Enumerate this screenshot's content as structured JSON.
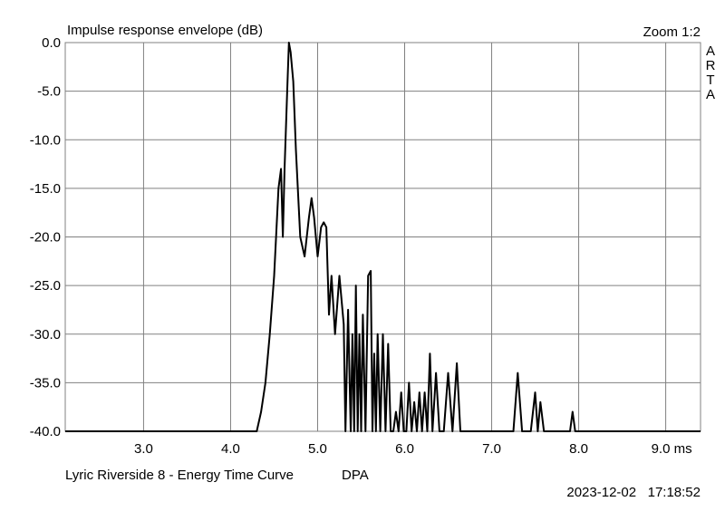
{
  "chart_data": {
    "type": "line",
    "title": "Impulse response envelope (dB)",
    "xlabel": "",
    "ylabel": "",
    "x_unit": "ms",
    "xlim": [
      2.1,
      9.4
    ],
    "ylim": [
      -40,
      0
    ],
    "x_ticks": [
      3.0,
      4.0,
      5.0,
      6.0,
      7.0,
      8.0,
      9.0
    ],
    "x_tick_labels": [
      "3.0",
      "4.0",
      "5.0",
      "6.0",
      "7.0",
      "8.0",
      "9.0 ms"
    ],
    "y_ticks": [
      0,
      -5,
      -10,
      -15,
      -20,
      -25,
      -30,
      -35,
      -40
    ],
    "y_tick_labels": [
      "0.0",
      "-5.0",
      "-10.0",
      "-15.0",
      "-20.0",
      "-25.0",
      "-30.0",
      "-35.0",
      "-40.0"
    ],
    "grid": true,
    "series": [
      {
        "x": [
          2.1,
          4.3,
          4.35,
          4.4,
          4.45,
          4.5,
          4.55,
          4.58,
          4.6,
          4.62,
          4.65,
          4.67,
          4.69,
          4.72,
          4.75,
          4.8,
          4.85,
          4.9,
          4.93,
          4.96,
          5.0,
          5.04,
          5.07,
          5.1,
          5.13,
          5.16,
          5.2,
          5.25,
          5.3,
          5.32,
          5.35,
          5.38,
          5.4,
          5.42,
          5.44,
          5.46,
          5.48,
          5.5,
          5.52,
          5.55,
          5.58,
          5.61,
          5.63,
          5.65,
          5.67,
          5.69,
          5.72,
          5.75,
          5.78,
          5.81,
          5.84,
          5.87,
          5.9,
          5.93,
          5.96,
          5.99,
          6.02,
          6.05,
          6.08,
          6.11,
          6.14,
          6.17,
          6.2,
          6.23,
          6.26,
          6.29,
          6.32,
          6.36,
          6.4,
          6.45,
          6.5,
          6.55,
          6.6,
          6.64,
          6.68,
          6.72,
          6.76,
          6.8,
          6.84,
          6.88,
          6.92,
          6.96,
          7.0,
          7.05,
          7.1,
          7.15,
          7.2,
          7.25,
          7.3,
          7.35,
          7.4,
          7.45,
          7.5,
          7.53,
          7.56,
          7.6,
          7.65,
          7.7,
          7.8,
          7.9,
          7.93,
          7.96,
          8.0,
          9.4
        ],
        "y": [
          -40,
          -40,
          -38,
          -35,
          -30,
          -24,
          -15,
          -13,
          -20,
          -13,
          -5,
          0,
          -1,
          -4,
          -11,
          -20,
          -22,
          -18,
          -16,
          -18,
          -22,
          -19,
          -18.5,
          -19,
          -28,
          -24,
          -30,
          -24,
          -29,
          -40,
          -27.5,
          -40,
          -30,
          -40,
          -25,
          -40,
          -30,
          -40,
          -28,
          -40,
          -24,
          -23.5,
          -40,
          -32,
          -40,
          -30,
          -40,
          -30,
          -40,
          -31,
          -40,
          -40,
          -38,
          -40,
          -36,
          -40,
          -40,
          -35,
          -40,
          -37,
          -40,
          -36,
          -40,
          -36,
          -40,
          -32,
          -40,
          -34,
          -40,
          -40,
          -34,
          -40,
          -33,
          -40,
          -40,
          -40,
          -40,
          -40,
          -40,
          -40,
          -40,
          -40,
          -40,
          -40,
          -40,
          -40,
          -40,
          -40,
          -34,
          -40,
          -40,
          -40,
          -36,
          -40,
          -37,
          -40,
          -40,
          -40,
          -40,
          -40,
          -38,
          -40,
          -40,
          -40
        ]
      }
    ]
  },
  "header": {
    "zoom_label": "Zoom 1:2",
    "brand_letters": [
      "A",
      "R",
      "T",
      "A"
    ]
  },
  "footer": {
    "caption": "Lyric Riverside 8 - Energy Time Curve",
    "mic_label": "DPA",
    "timestamp": "2023-12-02   17:18:52"
  },
  "colors": {
    "background": "#ffffff",
    "grid": "#808080",
    "trace": "#000000"
  }
}
